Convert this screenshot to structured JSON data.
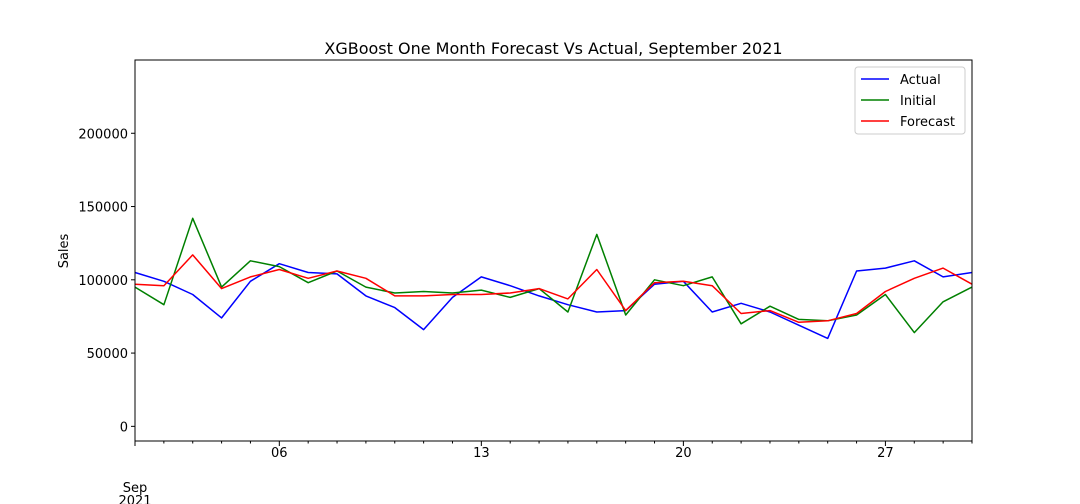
{
  "chart_data": {
    "type": "line",
    "title": "XGBoost One Month Forecast Vs Actual, September 2021",
    "xlabel": "",
    "ylabel": "Sales",
    "x": [
      "2021-09-01",
      "2021-09-02",
      "2021-09-03",
      "2021-09-04",
      "2021-09-05",
      "2021-09-06",
      "2021-09-07",
      "2021-09-08",
      "2021-09-09",
      "2021-09-10",
      "2021-09-11",
      "2021-09-12",
      "2021-09-13",
      "2021-09-14",
      "2021-09-15",
      "2021-09-16",
      "2021-09-17",
      "2021-09-18",
      "2021-09-19",
      "2021-09-20",
      "2021-09-21",
      "2021-09-22",
      "2021-09-23",
      "2021-09-24",
      "2021-09-25",
      "2021-09-26",
      "2021-09-27",
      "2021-09-28",
      "2021-09-29",
      "2021-09-30"
    ],
    "x_ticks": [
      {
        "day": 1,
        "label": "Sep"
      },
      {
        "day": 6,
        "label": "06"
      },
      {
        "day": 13,
        "label": "13"
      },
      {
        "day": 20,
        "label": "20"
      },
      {
        "day": 27,
        "label": "27"
      }
    ],
    "x_year_label": "2021",
    "ylim": [
      -10000,
      250000
    ],
    "yticks": [
      0,
      50000,
      100000,
      150000,
      200000
    ],
    "ytick_labels": [
      "0",
      "50000",
      "100000",
      "150000",
      "200000"
    ],
    "grid": false,
    "legend_position": "top-right",
    "series": [
      {
        "name": "Actual",
        "color": "#0000ff",
        "values": [
          105000,
          99000,
          90000,
          74000,
          99000,
          111000,
          105000,
          104000,
          89000,
          81000,
          66000,
          88000,
          102000,
          96000,
          89000,
          83000,
          78000,
          79000,
          97000,
          99000,
          78000,
          84000,
          78000,
          69000,
          60000,
          106000,
          108000,
          113000,
          102000,
          105000
        ]
      },
      {
        "name": "Initial",
        "color": "#008000",
        "values": [
          95000,
          83000,
          142000,
          95000,
          113000,
          109000,
          98000,
          106000,
          95000,
          91000,
          92000,
          91000,
          93000,
          88000,
          94000,
          78000,
          131000,
          76000,
          100000,
          96000,
          102000,
          70000,
          82000,
          73000,
          72000,
          76000,
          90000,
          64000,
          85000,
          95000
        ]
      },
      {
        "name": "Forecast",
        "color": "#ff0000",
        "values": [
          97000,
          96000,
          117000,
          94000,
          102000,
          107000,
          101000,
          106000,
          101000,
          89000,
          89000,
          90000,
          90000,
          91000,
          94000,
          87000,
          107000,
          79000,
          98000,
          99000,
          96000,
          77000,
          79000,
          71000,
          72000,
          77000,
          92000,
          101000,
          108000,
          97000
        ]
      }
    ]
  }
}
